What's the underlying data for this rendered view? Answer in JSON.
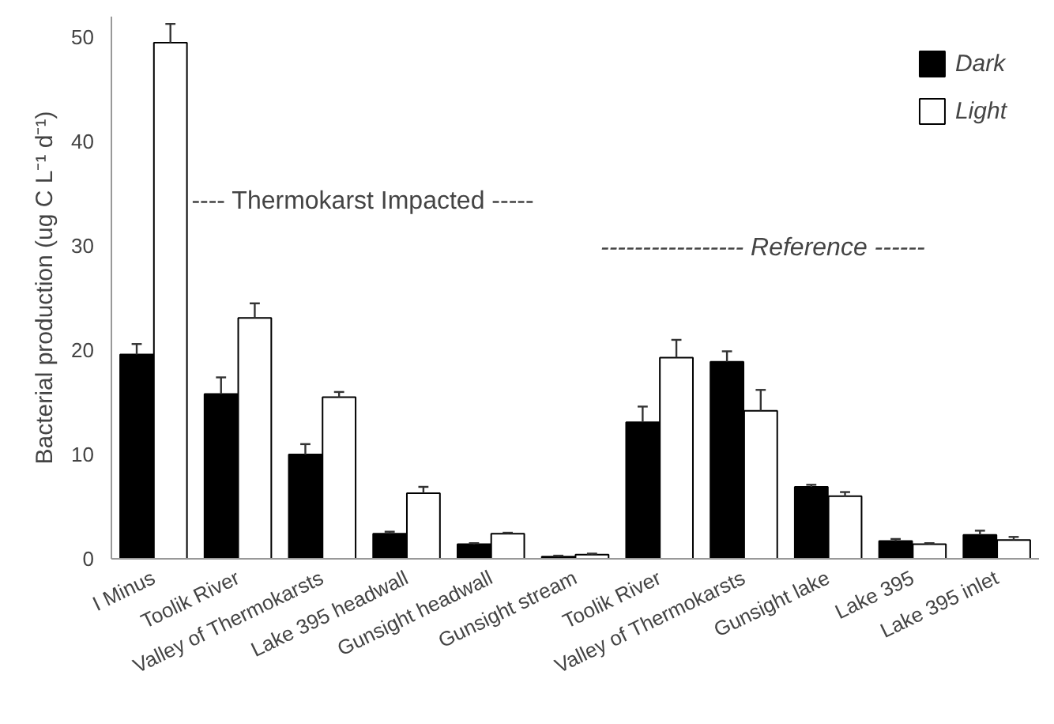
{
  "chart_data": {
    "type": "bar",
    "ylabel": "Bacterial production (ug C L⁻¹ d⁻¹)",
    "categories": [
      "I Minus",
      "Toolik River",
      "Valley of Thermokarsts",
      "Lake 395 headwall",
      "Gunsight headwall",
      "Gunsight stream",
      "Toolik River",
      "Valley of Thermokarsts",
      "Gunsight lake",
      "Lake 395",
      "Lake 395 inlet"
    ],
    "series": [
      {
        "name": "Dark",
        "color": "#000000",
        "values": [
          19.6,
          15.8,
          10.0,
          2.4,
          1.4,
          0.2,
          13.1,
          18.9,
          6.9,
          1.7,
          2.3
        ],
        "errors": [
          [
            19.6,
            20.6
          ],
          [
            15.8,
            17.4
          ],
          [
            10.0,
            11.0
          ],
          [
            2.4,
            2.6
          ],
          [
            1.4,
            1.5
          ],
          [
            0.2,
            0.3
          ],
          [
            13.1,
            14.6
          ],
          [
            18.9,
            19.9
          ],
          [
            6.9,
            7.1
          ],
          [
            1.7,
            1.9
          ],
          [
            2.3,
            2.7
          ]
        ]
      },
      {
        "name": "Light",
        "color": "#ffffff",
        "values": [
          49.5,
          23.1,
          15.5,
          6.3,
          2.4,
          0.4,
          19.3,
          14.2,
          6.0,
          1.4,
          1.8
        ],
        "errors": [
          [
            49.5,
            51.3
          ],
          [
            23.1,
            24.5
          ],
          [
            15.5,
            16.0
          ],
          [
            6.3,
            6.9
          ],
          [
            2.4,
            2.5
          ],
          [
            0.4,
            0.5
          ],
          [
            19.3,
            21.0
          ],
          [
            14.2,
            16.2
          ],
          [
            6.0,
            6.4
          ],
          [
            1.4,
            1.5
          ],
          [
            1.8,
            2.1
          ]
        ]
      }
    ],
    "ylim": [
      0,
      52
    ],
    "yticks": [
      0,
      10,
      20,
      30,
      40,
      50
    ],
    "grid": false,
    "legend": "top right",
    "annotations": [
      "---- Thermokarst Impacted -----",
      "----------------- Reference ------"
    ]
  }
}
